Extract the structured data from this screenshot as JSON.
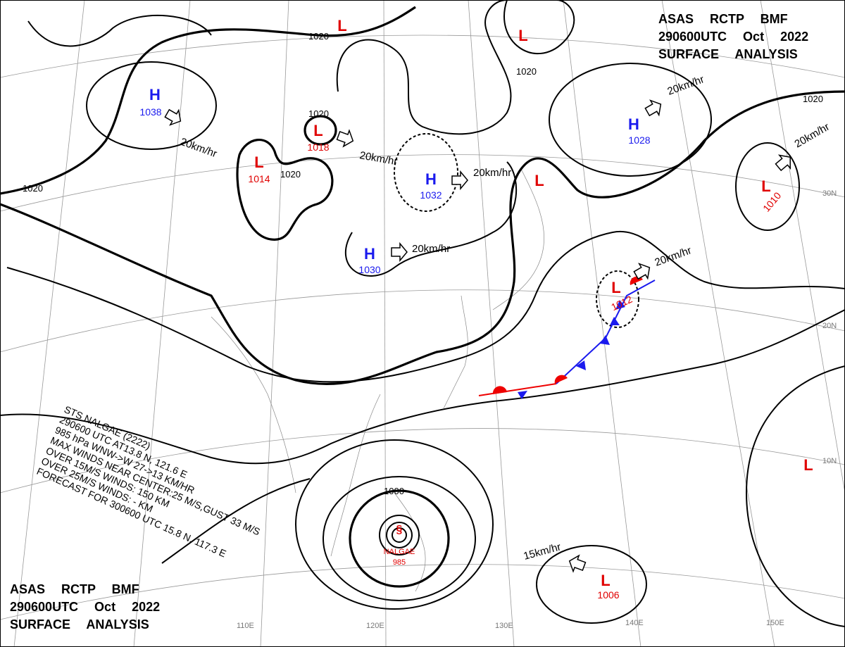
{
  "header": {
    "line1": "ASAS RCTP BMF",
    "line2": "290600UTC Oct 2022",
    "line3": "SURFACE ANALYSIS"
  },
  "centers": [
    {
      "letter": "H",
      "pressure": "1038"
    },
    {
      "letter": "L",
      "pressure": "1018"
    },
    {
      "letter": "L",
      "pressure": "1014"
    },
    {
      "letter": "H",
      "pressure": "1032"
    },
    {
      "letter": "H",
      "pressure": "1030"
    },
    {
      "letter": "H",
      "pressure": "1028"
    },
    {
      "letter": "L",
      "pressure": "1010"
    },
    {
      "letter": "L",
      "pressure": "1012"
    },
    {
      "letter": "L",
      "pressure": "1006"
    },
    {
      "letter": "L"
    },
    {
      "letter": "L"
    },
    {
      "letter": "L"
    },
    {
      "letter": "L"
    }
  ],
  "typhoon": {
    "name": "NALGAE",
    "pressure": "985"
  },
  "isobar_labels": [
    "1020",
    "1020",
    "1020",
    "1020",
    "1020",
    "1020",
    "1000"
  ],
  "motions": [
    "20km/hr",
    "20km/hr",
    "20km/hr",
    "20km/hr",
    "20km/hr",
    "20km/hr",
    "20km/hr",
    "15km/hr"
  ],
  "storm_info": [
    "STS NALGAE (2222)",
    "290600 UTC AT13.8 N, 121.6 E",
    "985 hPa WNW->W 27->13 KM/HR",
    "MAX WINDS NEAR CENTER:25 M/S,GUST 33 M/S",
    "OVER 15M/S WINDS: 150 KM",
    "OVER 25M/S WINDS: - KM",
    "FORECAST FOR 300600 UTC 15.8 N, 117.3 E"
  ],
  "longitudes": [
    "110E",
    "120E",
    "130E",
    "140E",
    "150E"
  ],
  "latitudes": [
    "30N",
    "20N",
    "10N"
  ]
}
